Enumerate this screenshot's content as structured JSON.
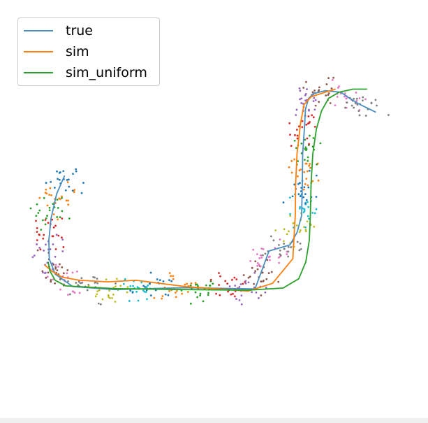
{
  "colors": {
    "true": "#4a8fbf",
    "sim": "#ff7f0e",
    "sim_uniform": "#2ca02c",
    "scatter": [
      "#1f77b4",
      "#ff7f0e",
      "#2ca02c",
      "#d62728",
      "#9467bd",
      "#8c564b",
      "#e377c2",
      "#7f7f7f",
      "#bcbd22",
      "#17becf"
    ]
  },
  "legend": {
    "items": [
      {
        "label": "true",
        "color_key": "true"
      },
      {
        "label": "sim",
        "color_key": "sim"
      },
      {
        "label": "sim_uniform",
        "color_key": "sim_uniform"
      }
    ]
  },
  "chart_data": {
    "type": "line",
    "title": "",
    "xlabel": "",
    "ylabel": "",
    "axes_visible": false,
    "grid": false,
    "legend_position": "top-left",
    "xlim": [
      0,
      100
    ],
    "ylim": [
      0,
      100
    ],
    "series": [
      {
        "name": "true",
        "color_key": "true",
        "x": [
          5.7,
          3.4,
          1.8,
          1.2,
          1.3,
          3.0,
          8.0,
          20,
          40,
          60,
          64,
          70,
          72,
          73.3,
          73.5,
          73.6,
          74.2,
          74.4,
          75.3,
          76.8,
          80,
          84.5,
          87,
          90,
          94.5
        ],
        "y": [
          61,
          55,
          47,
          40,
          34,
          29,
          25,
          24,
          24.6,
          24.2,
          36.5,
          38.5,
          42.5,
          48,
          58,
          68,
          78,
          82.5,
          86,
          87.6,
          88.5,
          88,
          86,
          84,
          81.5
        ]
      },
      {
        "name": "sim",
        "color_key": "sim",
        "x": [
          0,
          2,
          5,
          10,
          18,
          26,
          40,
          58,
          65,
          70.8,
          71.5,
          71.6,
          72,
          73,
          74,
          76,
          80,
          83
        ],
        "y": [
          32,
          30,
          28,
          27,
          26.5,
          27,
          25,
          23.5,
          26,
          34,
          48,
          58,
          68,
          78,
          84,
          86.5,
          88,
          89
        ]
      },
      {
        "name": "sim_uniform",
        "color_key": "sim_uniform",
        "x": [
          1.0,
          1.5,
          3.0,
          6.0,
          20,
          40,
          58,
          68,
          72.5,
          74.5,
          75.5,
          75.8,
          76.0,
          76.5,
          77.5,
          79,
          81,
          84,
          88,
          92
        ],
        "y": [
          33,
          30,
          27,
          25.2,
          24.3,
          24,
          23.8,
          24.5,
          27.5,
          33,
          40,
          48,
          58,
          68,
          76,
          82,
          86,
          88,
          89,
          89
        ]
      }
    ],
    "scatter_note_points_per_cluster": 34
  }
}
